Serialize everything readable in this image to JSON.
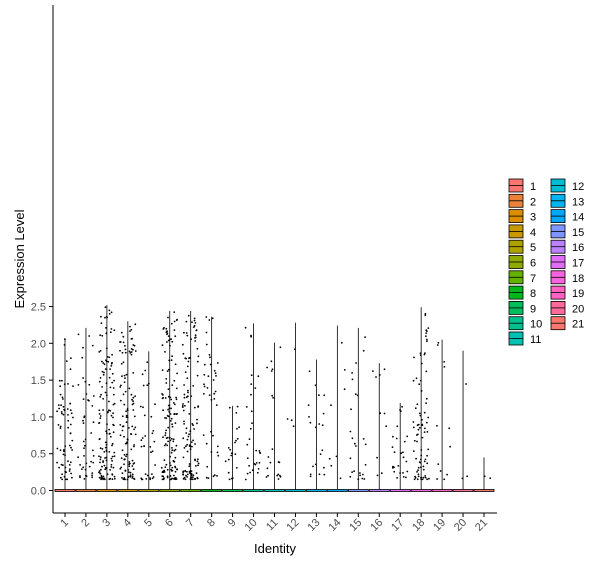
{
  "chart_data": {
    "type": "violin",
    "xlabel": "Identity",
    "ylabel": "Expression Level",
    "ylim": [
      -0.12,
      2.57
    ],
    "yticks": [
      0.0,
      0.5,
      1.0,
      1.5,
      2.0,
      2.5
    ],
    "ytick_labels": [
      "0.0",
      "0.5",
      "1.0",
      "1.5",
      "2.0",
      "2.5"
    ],
    "categories": [
      "1",
      "2",
      "3",
      "4",
      "5",
      "6",
      "7",
      "8",
      "9",
      "10",
      "11",
      "12",
      "13",
      "14",
      "15",
      "16",
      "17",
      "18",
      "19",
      "20",
      "21"
    ],
    "colors": [
      "#F8766D",
      "#EC8239",
      "#DB8E00",
      "#C79800",
      "#AEA200",
      "#8FAA00",
      "#64B200",
      "#00B81B",
      "#00BD5C",
      "#00C08D",
      "#00C1B2",
      "#00BDD4",
      "#00B4EF",
      "#00A7FF",
      "#7F96FF",
      "#BC81FF",
      "#E26EF7",
      "#F863DF",
      "#FF62C0",
      "#FF6A9A",
      "#F8766D"
    ],
    "max_values": [
      2.07,
      2.21,
      2.52,
      2.3,
      1.89,
      2.44,
      2.44,
      2.36,
      1.15,
      2.27,
      2.01,
      2.28,
      1.78,
      2.24,
      2.21,
      1.73,
      1.19,
      2.49,
      2.05,
      1.9,
      0.45
    ],
    "legend": {
      "position": "right",
      "entries": [
        "1",
        "2",
        "3",
        "4",
        "5",
        "6",
        "7",
        "8",
        "9",
        "10",
        "11",
        "12",
        "13",
        "14",
        "15",
        "16",
        "17",
        "18",
        "19",
        "20",
        "21"
      ]
    },
    "grid": false
  }
}
